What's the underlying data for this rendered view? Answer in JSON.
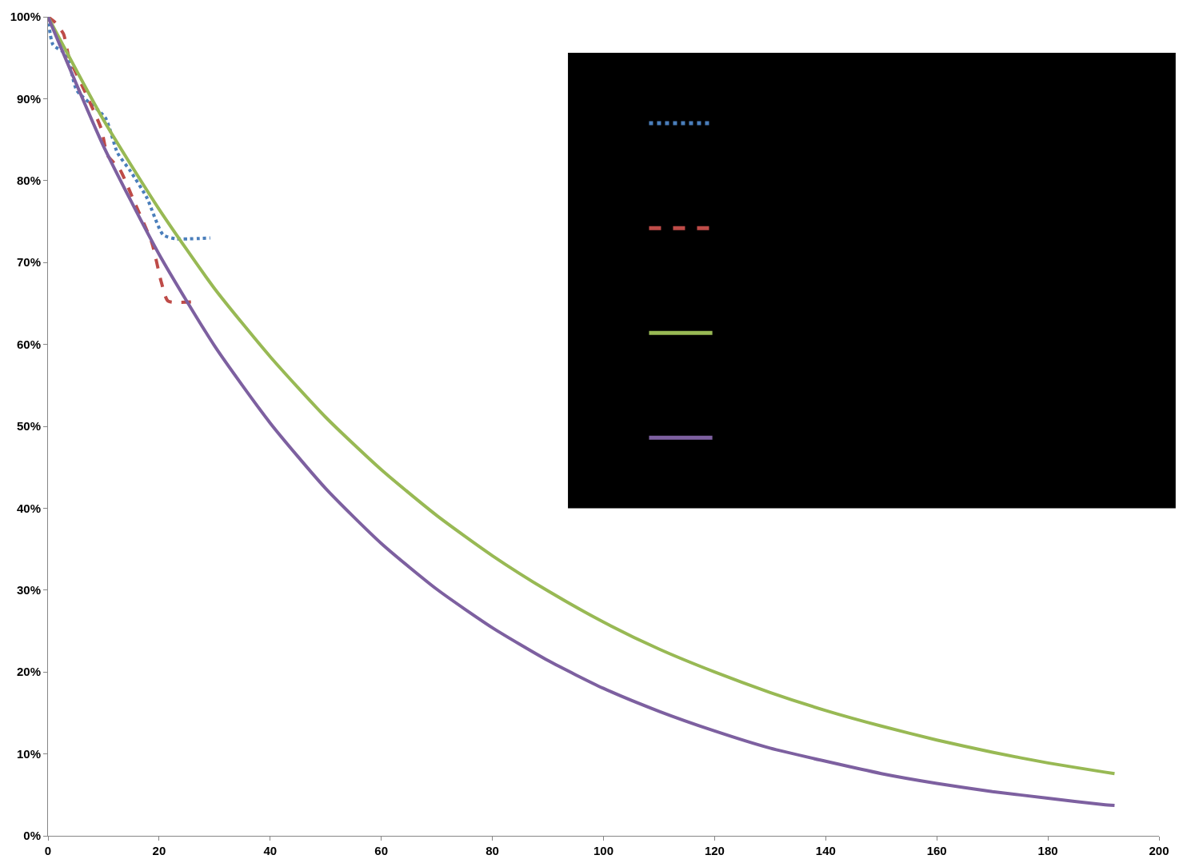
{
  "chart_data": {
    "type": "line",
    "xlim": [
      0,
      200
    ],
    "xticks": [
      0,
      20,
      40,
      60,
      80,
      100,
      120,
      140,
      160,
      180,
      200
    ],
    "ylim": [
      0,
      100
    ],
    "yticks": [
      {
        "value": 0,
        "label": "0%"
      },
      {
        "value": 10,
        "label": "10%"
      },
      {
        "value": 20,
        "label": "20%"
      },
      {
        "value": 30,
        "label": "30%"
      },
      {
        "value": 40,
        "label": "40%"
      },
      {
        "value": 50,
        "label": "50%"
      },
      {
        "value": 60,
        "label": "60%"
      },
      {
        "value": 70,
        "label": "70%"
      },
      {
        "value": 80,
        "label": "80%"
      },
      {
        "value": 90,
        "label": "90%"
      },
      {
        "value": 100,
        "label": "100%"
      }
    ],
    "marker": "none",
    "series": [
      {
        "color": "#4a7ebb",
        "line_style": "dotted",
        "x": [
          0,
          0.9,
          3.3,
          5.2,
          10.3,
          12.5,
          14.9,
          17.8,
          20.7,
          23,
          29.2
        ],
        "values": [
          100,
          96.6,
          95.4,
          91.0,
          87.7,
          83.4,
          81.1,
          77.9,
          73.4,
          72.9,
          73.0
        ]
      },
      {
        "color": "#be4b48",
        "line_style": "dashed",
        "x": [
          0,
          1.3,
          2.8,
          3.8,
          6.7,
          9.6,
          10.7,
          12.9,
          15.8,
          18.7,
          20.4,
          21.6,
          26
        ],
        "values": [
          100,
          99.3,
          97.9,
          95.0,
          90.8,
          86.3,
          83.1,
          81.4,
          77.0,
          72.4,
          67.6,
          65.3,
          65.2
        ]
      },
      {
        "color": "#98b954",
        "line_style": "solid",
        "x": [
          0,
          10,
          20,
          30,
          40,
          50,
          60,
          70,
          80,
          90,
          100,
          110,
          120,
          130,
          140,
          150,
          160,
          170,
          180,
          190,
          192
        ],
        "values": [
          100,
          87.4,
          76.5,
          66.8,
          58.5,
          51.1,
          44.7,
          39.1,
          34.2,
          29.9,
          26.1,
          22.8,
          20.0,
          17.5,
          15.3,
          13.4,
          11.7,
          10.2,
          8.9,
          7.8,
          7.6
        ]
      },
      {
        "color": "#7d60a0",
        "line_style": "solid",
        "x": [
          0,
          10,
          20,
          30,
          40,
          50,
          60,
          70,
          80,
          90,
          100,
          110,
          120,
          130,
          140,
          150,
          160,
          170,
          180,
          190,
          192
        ],
        "values": [
          100,
          84.2,
          71.0,
          59.8,
          50.4,
          42.4,
          35.7,
          30.1,
          25.4,
          21.4,
          18.0,
          15.2,
          12.8,
          10.7,
          9.1,
          7.6,
          6.4,
          5.4,
          4.6,
          3.8,
          3.7
        ]
      }
    ]
  }
}
